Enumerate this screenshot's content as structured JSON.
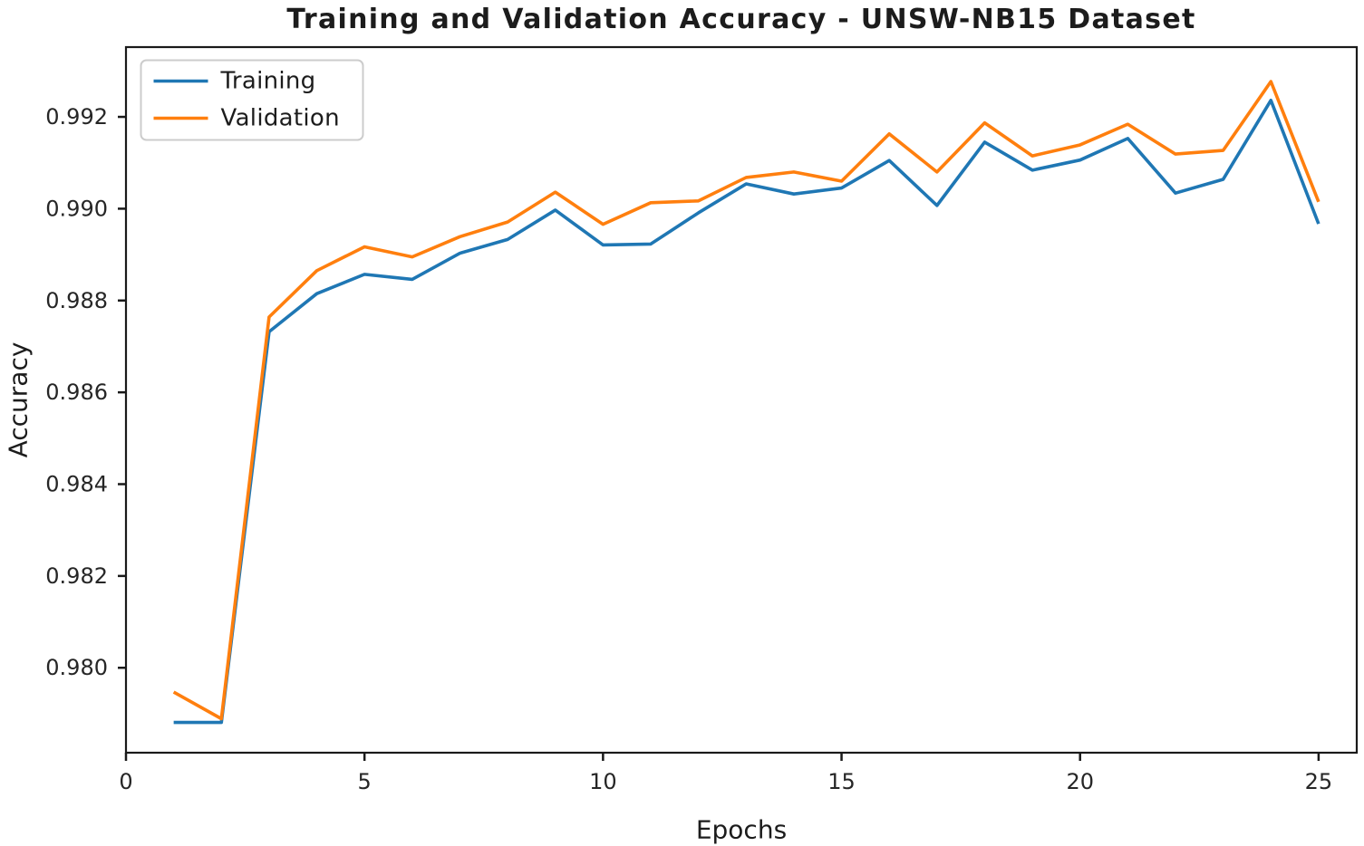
{
  "chart_data": {
    "type": "line",
    "title": "Training and Validation Accuracy - UNSW-NB15 Dataset",
    "xlabel": "Epochs",
    "ylabel": "Accuracy",
    "x": [
      1,
      2,
      3,
      4,
      5,
      6,
      7,
      8,
      9,
      10,
      11,
      12,
      13,
      14,
      15,
      16,
      17,
      18,
      19,
      20,
      21,
      22,
      23,
      24,
      25
    ],
    "series": [
      {
        "name": "Training",
        "color": "#1f77b4",
        "values": [
          0.97881,
          0.97881,
          0.98732,
          0.98815,
          0.98857,
          0.98846,
          0.98903,
          0.98933,
          0.98997,
          0.98921,
          0.98923,
          0.98991,
          0.99054,
          0.99032,
          0.99045,
          0.99105,
          0.99007,
          0.99145,
          0.99084,
          0.99106,
          0.99153,
          0.99034,
          0.99064,
          0.99236,
          0.98967
        ]
      },
      {
        "name": "Validation",
        "color": "#ff7f0e",
        "values": [
          0.97947,
          0.97889,
          0.98764,
          0.98865,
          0.98917,
          0.98895,
          0.98939,
          0.98971,
          0.99036,
          0.98966,
          0.99013,
          0.99017,
          0.99068,
          0.9908,
          0.9906,
          0.99163,
          0.9908,
          0.99187,
          0.99115,
          0.99139,
          0.99184,
          0.99119,
          0.99127,
          0.99277,
          0.99015
        ]
      }
    ],
    "xlim": [
      0,
      25.8
    ],
    "ylim": [
      0.97815,
      0.99352
    ],
    "xticks": {
      "values": [
        0,
        5,
        10,
        15,
        20,
        25
      ],
      "labels": [
        "0",
        "5",
        "10",
        "15",
        "20",
        "25"
      ]
    },
    "yticks": {
      "values": [
        0.98,
        0.982,
        0.984,
        0.986,
        0.988,
        0.99,
        0.992
      ],
      "labels": [
        "0.980",
        "0.982",
        "0.984",
        "0.986",
        "0.988",
        "0.990",
        "0.992"
      ]
    },
    "legend": {
      "entries": [
        "Training",
        "Validation"
      ],
      "position": "upper left"
    },
    "grid": false,
    "line_width": 3.6,
    "background_color": "#ffffff",
    "axis_color": "#1a1a1a",
    "text_color": "#1c1c1c"
  }
}
